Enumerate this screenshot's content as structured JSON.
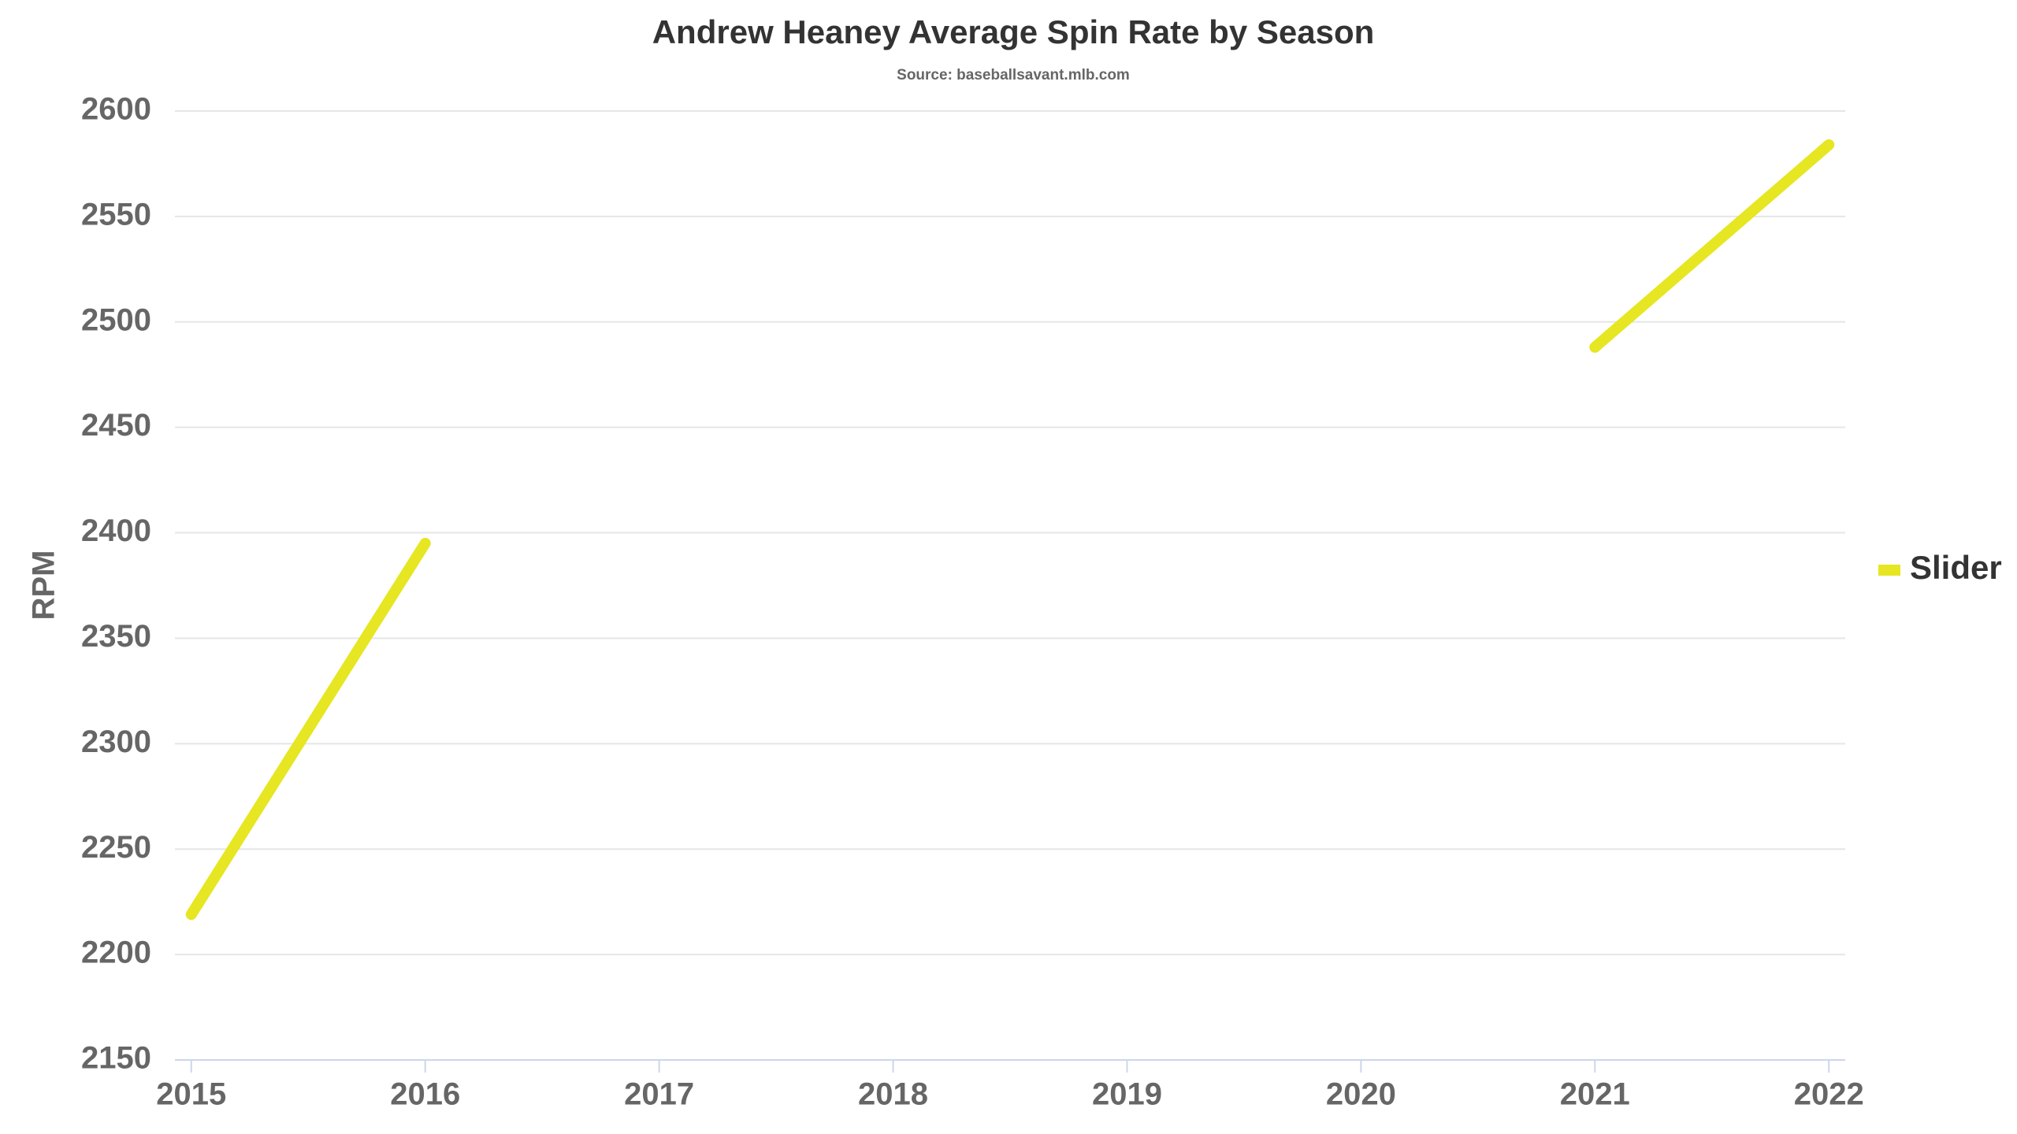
{
  "chart_data": {
    "type": "line",
    "title": "Andrew Heaney Average Spin Rate by Season",
    "subtitle": "Source: baseballsavant.mlb.com",
    "y_label": "RPM",
    "x": [
      2015,
      2016,
      2017,
      2018,
      2019,
      2020,
      2021,
      2022
    ],
    "series": [
      {
        "name": "Slider",
        "color": "#e6e622",
        "values": [
          2219,
          2395,
          null,
          null,
          null,
          null,
          2488,
          2584
        ]
      }
    ],
    "xlim": [
      2014.93,
      2022.07
    ],
    "xticks": [
      2015,
      2016,
      2017,
      2018,
      2019,
      2020,
      2021,
      2022
    ],
    "ylim": [
      2150,
      2600
    ],
    "yticks": [
      2150,
      2200,
      2250,
      2300,
      2350,
      2400,
      2450,
      2500,
      2550,
      2600
    ],
    "grid": true,
    "legend": "right"
  }
}
